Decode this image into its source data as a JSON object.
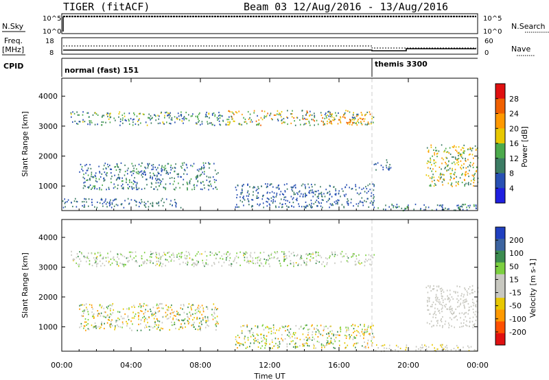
{
  "header": {
    "radar": "TIGER (fitACF)",
    "beam_info": "Beam 03 12/Aug/2016 - 13/Aug/2016"
  },
  "strips": {
    "nsky_label": "N.Sky",
    "nsky_ticks": [
      "10^5",
      "10^0"
    ],
    "nsearch_label": "N.Search",
    "nsearch_ticks": [
      "10^5",
      "10^0"
    ],
    "freq_label_1": "Freq.",
    "freq_label_2": "[MHz]",
    "freq_ticks": [
      "18",
      "8"
    ],
    "nave_label": "Nave",
    "nave_ticks": [
      "60",
      "0"
    ],
    "cpid_label": "CPID",
    "cpid_modes": [
      {
        "name": "normal (fast) 151",
        "start_hour": 0
      },
      {
        "name": "themis 3300",
        "start_hour": 18
      }
    ]
  },
  "colors": {
    "power": [
      "#1f1fe0",
      "#2850b4",
      "#3c7c64",
      "#4caa4c",
      "#e8c800",
      "#ff9900",
      "#f06000",
      "#e01010"
    ],
    "velocity": [
      "#e01010",
      "#ff5000",
      "#ff9900",
      "#e8c800",
      "#c8c8c0",
      "#c8c8c0",
      "#7cd040",
      "#3c8c50",
      "#3c64a0",
      "#2040c0"
    ]
  },
  "chart_data": [
    {
      "type": "heatmap",
      "name": "power",
      "xlabel": "",
      "ylabel": "Slant Range [km]",
      "x_ticks": [
        "00:00",
        "04:00",
        "08:00",
        "12:00",
        "16:00",
        "20:00",
        "00:00"
      ],
      "xlim": [
        0,
        24
      ],
      "y_ticks": [
        1000,
        2000,
        3000,
        4000
      ],
      "ylim": [
        180,
        4600
      ],
      "colorbar": {
        "label": "Power [dB]",
        "ticks": [
          4,
          8,
          12,
          16,
          20,
          24,
          28
        ],
        "range": [
          0,
          32
        ]
      },
      "mode_change_hour": 18,
      "regions": [
        {
          "t": [
            0.5,
            9.5
          ],
          "r": [
            3050,
            3500
          ],
          "v": [
            4,
            18
          ]
        },
        {
          "t": [
            9.5,
            18
          ],
          "r": [
            3050,
            3550
          ],
          "v": [
            6,
            26
          ]
        },
        {
          "t": [
            15,
            17.5
          ],
          "r": [
            3100,
            3300
          ],
          "v": [
            18,
            28
          ]
        },
        {
          "t": [
            18,
            24
          ],
          "r": [
            200,
            420
          ],
          "v": [
            4,
            14
          ]
        },
        {
          "t": [
            18,
            19
          ],
          "r": [
            1550,
            1900
          ],
          "v": [
            4,
            10
          ]
        },
        {
          "t": [
            21,
            24
          ],
          "r": [
            1000,
            2400
          ],
          "v": [
            8,
            24
          ]
        },
        {
          "t": [
            1,
            9
          ],
          "r": [
            900,
            1800
          ],
          "v": [
            4,
            14
          ]
        },
        {
          "t": [
            0,
            7
          ],
          "r": [
            300,
            600
          ],
          "v": [
            4,
            12
          ]
        },
        {
          "t": [
            10,
            18
          ],
          "r": [
            300,
            1100
          ],
          "v": [
            4,
            10
          ]
        }
      ]
    },
    {
      "type": "heatmap",
      "name": "velocity",
      "xlabel": "Time UT",
      "ylabel": "Slant Range [km]",
      "x_ticks": [
        "00:00",
        "04:00",
        "08:00",
        "12:00",
        "16:00",
        "20:00",
        "00:00"
      ],
      "xlim": [
        0,
        24
      ],
      "y_ticks": [
        1000,
        2000,
        3000,
        4000
      ],
      "ylim": [
        180,
        4600
      ],
      "colorbar": {
        "label": "Velocity [m s-1]",
        "ticks": [
          200,
          100,
          50,
          15,
          -15,
          -50,
          -100,
          -200
        ],
        "range": [
          -250,
          250
        ]
      },
      "mode_change_hour": 18,
      "regions": [
        {
          "t": [
            0.5,
            18
          ],
          "r": [
            3050,
            3550
          ],
          "v": [
            -60,
            120
          ]
        },
        {
          "t": [
            21,
            24
          ],
          "r": [
            1000,
            2400
          ],
          "v": [
            -20,
            20
          ]
        },
        {
          "t": [
            18,
            24
          ],
          "r": [
            200,
            420
          ],
          "v": [
            -80,
            40
          ]
        },
        {
          "t": [
            1,
            9
          ],
          "r": [
            900,
            1800
          ],
          "v": [
            -150,
            150
          ]
        },
        {
          "t": [
            10,
            18
          ],
          "r": [
            300,
            1100
          ],
          "v": [
            -150,
            150
          ]
        }
      ]
    }
  ]
}
